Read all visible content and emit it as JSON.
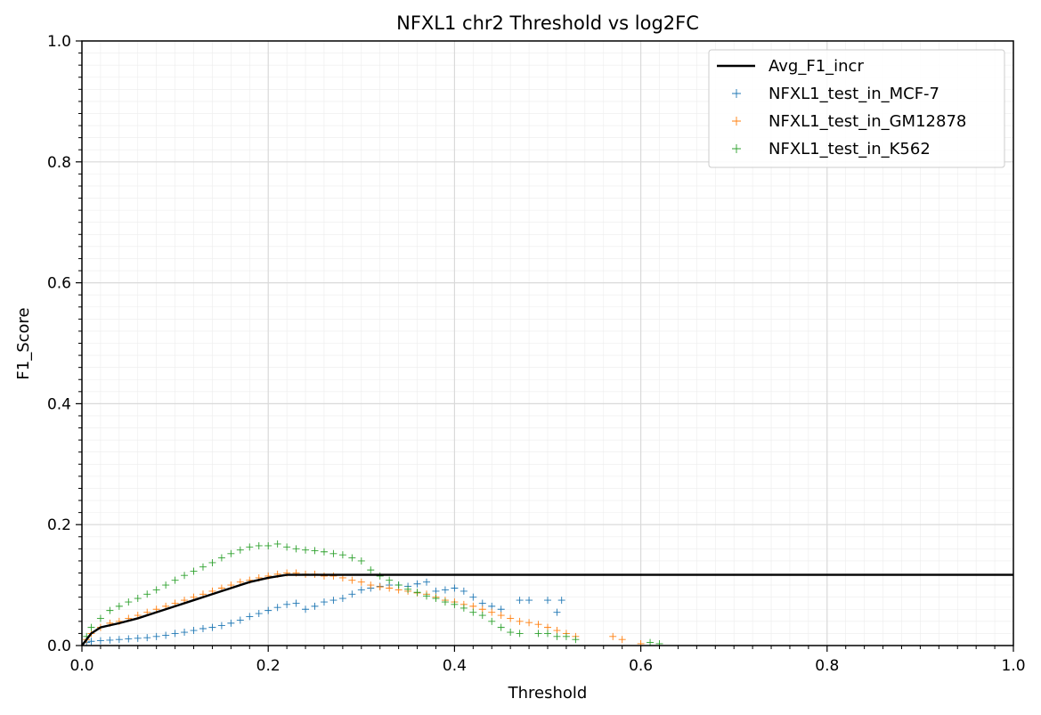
{
  "chart_data": {
    "type": "scatter",
    "title": "NFXL1 chr2 Threshold vs log2FC",
    "xlabel": "Threshold",
    "ylabel": "F1_Score",
    "xlim": [
      0.0,
      1.0
    ],
    "ylim": [
      0.0,
      1.0
    ],
    "xticks": [
      "0.0",
      "0.2",
      "0.4",
      "0.6",
      "0.8",
      "1.0"
    ],
    "yticks": [
      "0.0",
      "0.2",
      "0.4",
      "0.6",
      "0.8",
      "1.0"
    ],
    "grid": true,
    "minor_grid": true,
    "legend_position": "top-right",
    "line": {
      "name": "Avg_F1_incr",
      "color": "#000000",
      "x": [
        0.0,
        0.005,
        0.01,
        0.02,
        0.04,
        0.06,
        0.08,
        0.1,
        0.12,
        0.14,
        0.16,
        0.18,
        0.2,
        0.22,
        1.0
      ],
      "y": [
        0.0,
        0.01,
        0.02,
        0.03,
        0.037,
        0.045,
        0.055,
        0.065,
        0.075,
        0.085,
        0.095,
        0.105,
        0.112,
        0.117,
        0.117
      ]
    },
    "series": [
      {
        "name": "NFXL1_test_in_MCF-7",
        "color": "#1f77b4",
        "x": [
          0.005,
          0.01,
          0.02,
          0.03,
          0.04,
          0.05,
          0.06,
          0.07,
          0.08,
          0.09,
          0.1,
          0.11,
          0.12,
          0.13,
          0.14,
          0.15,
          0.16,
          0.17,
          0.18,
          0.19,
          0.2,
          0.21,
          0.22,
          0.23,
          0.24,
          0.25,
          0.26,
          0.27,
          0.28,
          0.29,
          0.3,
          0.31,
          0.32,
          0.33,
          0.34,
          0.35,
          0.36,
          0.37,
          0.38,
          0.39,
          0.4,
          0.41,
          0.42,
          0.43,
          0.44,
          0.45,
          0.47,
          0.48,
          0.5,
          0.51,
          0.515
        ],
        "y": [
          0.005,
          0.007,
          0.008,
          0.009,
          0.01,
          0.011,
          0.012,
          0.013,
          0.015,
          0.017,
          0.02,
          0.022,
          0.025,
          0.028,
          0.03,
          0.033,
          0.037,
          0.042,
          0.048,
          0.053,
          0.058,
          0.063,
          0.068,
          0.07,
          0.06,
          0.065,
          0.072,
          0.075,
          0.078,
          0.085,
          0.092,
          0.095,
          0.098,
          0.1,
          0.1,
          0.098,
          0.102,
          0.105,
          0.09,
          0.092,
          0.095,
          0.09,
          0.08,
          0.07,
          0.065,
          0.06,
          0.075,
          0.075,
          0.075,
          0.055,
          0.075
        ]
      },
      {
        "name": "NFXL1_test_in_GM12878",
        "color": "#ff7f0e",
        "x": [
          0.005,
          0.01,
          0.02,
          0.03,
          0.04,
          0.05,
          0.06,
          0.07,
          0.08,
          0.09,
          0.1,
          0.11,
          0.12,
          0.13,
          0.14,
          0.15,
          0.16,
          0.17,
          0.18,
          0.19,
          0.2,
          0.21,
          0.22,
          0.23,
          0.24,
          0.25,
          0.26,
          0.27,
          0.28,
          0.29,
          0.3,
          0.31,
          0.32,
          0.33,
          0.34,
          0.35,
          0.36,
          0.37,
          0.38,
          0.39,
          0.4,
          0.41,
          0.42,
          0.43,
          0.44,
          0.45,
          0.46,
          0.47,
          0.48,
          0.49,
          0.5,
          0.51,
          0.52,
          0.53,
          0.57,
          0.58,
          0.6
        ],
        "y": [
          0.01,
          0.02,
          0.03,
          0.037,
          0.04,
          0.045,
          0.05,
          0.055,
          0.06,
          0.065,
          0.07,
          0.075,
          0.08,
          0.085,
          0.09,
          0.095,
          0.1,
          0.105,
          0.108,
          0.112,
          0.115,
          0.118,
          0.12,
          0.12,
          0.118,
          0.118,
          0.115,
          0.115,
          0.112,
          0.108,
          0.105,
          0.1,
          0.097,
          0.095,
          0.092,
          0.09,
          0.087,
          0.085,
          0.08,
          0.075,
          0.072,
          0.068,
          0.065,
          0.06,
          0.055,
          0.05,
          0.045,
          0.04,
          0.038,
          0.035,
          0.03,
          0.025,
          0.02,
          0.015,
          0.015,
          0.01,
          0.003
        ]
      },
      {
        "name": "NFXL1_test_in_K562",
        "color": "#2ca02c",
        "x": [
          0.005,
          0.01,
          0.02,
          0.03,
          0.04,
          0.05,
          0.06,
          0.07,
          0.08,
          0.09,
          0.1,
          0.11,
          0.12,
          0.13,
          0.14,
          0.15,
          0.16,
          0.17,
          0.18,
          0.19,
          0.2,
          0.21,
          0.22,
          0.23,
          0.24,
          0.25,
          0.26,
          0.27,
          0.28,
          0.29,
          0.3,
          0.31,
          0.32,
          0.33,
          0.34,
          0.35,
          0.36,
          0.37,
          0.38,
          0.39,
          0.4,
          0.41,
          0.42,
          0.43,
          0.44,
          0.45,
          0.46,
          0.47,
          0.49,
          0.5,
          0.51,
          0.52,
          0.53,
          0.61,
          0.62
        ],
        "y": [
          0.015,
          0.03,
          0.045,
          0.058,
          0.065,
          0.072,
          0.078,
          0.085,
          0.092,
          0.1,
          0.108,
          0.116,
          0.123,
          0.13,
          0.137,
          0.145,
          0.152,
          0.158,
          0.163,
          0.165,
          0.165,
          0.168,
          0.163,
          0.16,
          0.158,
          0.157,
          0.155,
          0.152,
          0.15,
          0.145,
          0.14,
          0.125,
          0.115,
          0.108,
          0.1,
          0.093,
          0.088,
          0.082,
          0.078,
          0.072,
          0.068,
          0.062,
          0.055,
          0.05,
          0.04,
          0.03,
          0.022,
          0.02,
          0.02,
          0.02,
          0.015,
          0.015,
          0.01,
          0.005,
          0.003
        ]
      }
    ]
  }
}
